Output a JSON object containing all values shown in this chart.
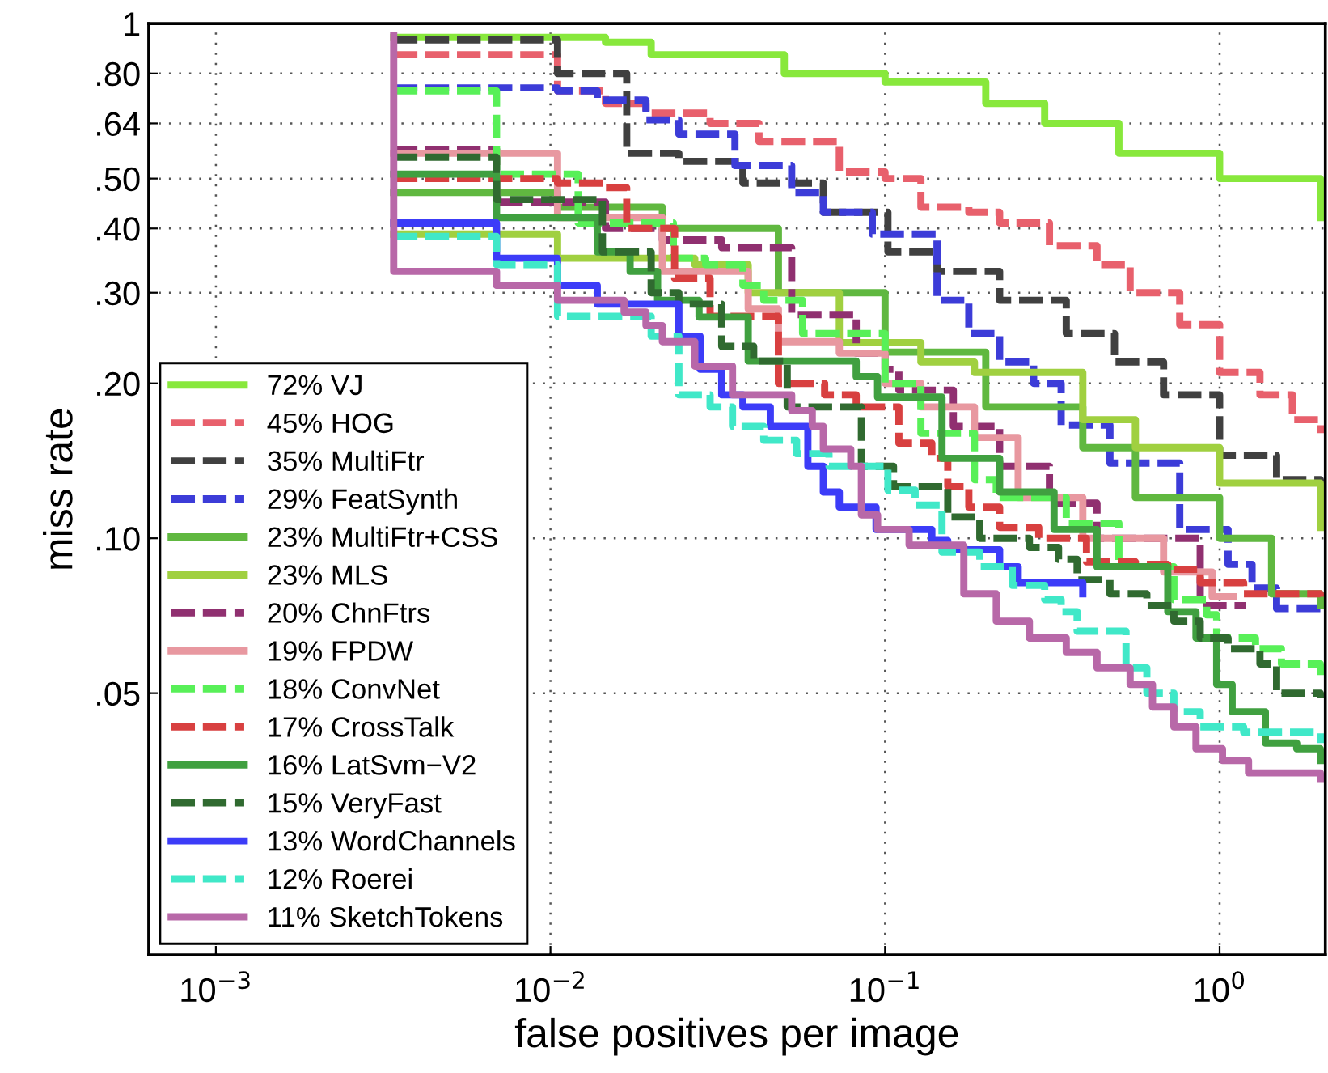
{
  "chart_data": {
    "type": "step",
    "xlabel": "false positives per image",
    "ylabel": "miss rate",
    "log": "xy",
    "grid": true,
    "legend": "bottom left",
    "xlim": [
      0.00063,
      2.07
    ],
    "ylim": [
      0.0155,
      1
    ],
    "xticks": [
      {
        "value": 0.001,
        "label": "10$^{−3}$"
      },
      {
        "value": 0.01,
        "label": "10$^{−2}$"
      },
      {
        "value": 0.1,
        "label": "10$^{−1}$"
      },
      {
        "value": 1,
        "label": "10$^{0}$"
      }
    ],
    "yticks": [
      {
        "value": 0.05,
        "label": ".05"
      },
      {
        "value": 0.1,
        "label": ".10"
      },
      {
        "value": 0.2,
        "label": ".20"
      },
      {
        "value": 0.3,
        "label": ".30"
      },
      {
        "value": 0.4,
        "label": ".40"
      },
      {
        "value": 0.5,
        "label": ".50"
      },
      {
        "value": 0.64,
        "label": ".64"
      },
      {
        "value": 0.8,
        "label": ".80"
      },
      1
    ],
    "series": [
      {
        "name": "72% VJ",
        "color": "#88e83c",
        "line_style": "solid",
        "x": [
          0.0034,
          0.0146,
          0.02,
          0.05,
          0.1,
          0.2,
          0.3,
          0.5,
          1,
          2
        ],
        "values": [
          0.94,
          0.92,
          0.87,
          0.8,
          0.77,
          0.7,
          0.64,
          0.56,
          0.5,
          0.42
        ]
      },
      {
        "name": "45% HOG",
        "color": "#e8606c",
        "line_style": "dashed",
        "x": [
          0.0034,
          0.0105,
          0.0146,
          0.0193,
          0.03,
          0.042,
          0.073,
          0.1,
          0.128,
          0.178,
          0.22,
          0.31,
          0.43,
          0.54,
          0.76,
          1,
          1.32,
          1.65,
          2
        ],
        "values": [
          0.87,
          0.74,
          0.7,
          0.67,
          0.64,
          0.59,
          0.515,
          0.5,
          0.44,
          0.43,
          0.41,
          0.37,
          0.34,
          0.3,
          0.26,
          0.21,
          0.19,
          0.17,
          0.16
        ]
      },
      {
        "name": "35% MultiFtr",
        "color": "#404040",
        "line_style": "dashed",
        "x": [
          0.0034,
          0.0105,
          0.0169,
          0.0242,
          0.0376,
          0.0654,
          0.102,
          0.143,
          0.22,
          0.348,
          0.485,
          0.68,
          1,
          1.48,
          2
        ],
        "values": [
          0.93,
          0.8,
          0.56,
          0.54,
          0.49,
          0.43,
          0.36,
          0.33,
          0.29,
          0.25,
          0.22,
          0.19,
          0.145,
          0.13,
          0.12
        ]
      },
      {
        "name": "29% FeatSynth",
        "color": "#3c3cd8",
        "line_style": "dashed",
        "x": [
          0.0034,
          0.0105,
          0.0138,
          0.0193,
          0.0242,
          0.0356,
          0.0526,
          0.0654,
          0.0916,
          0.143,
          0.178,
          0.22,
          0.278,
          0.336,
          0.47,
          0.76,
          1.06,
          1.25,
          1.48,
          2
        ],
        "values": [
          0.75,
          0.74,
          0.71,
          0.65,
          0.61,
          0.53,
          0.47,
          0.43,
          0.39,
          0.29,
          0.25,
          0.22,
          0.2,
          0.166,
          0.14,
          0.104,
          0.089,
          0.08,
          0.073,
          0.073
        ]
      },
      {
        "name": "23% MultiFtr+CSS",
        "color": "#60b840",
        "line_style": "solid",
        "x": [
          0.0034,
          0.0105,
          0.0216,
          0.048,
          0.1,
          0.2,
          0.39,
          0.56,
          1,
          1.43,
          2
        ],
        "values": [
          0.47,
          0.44,
          0.4,
          0.3,
          0.23,
          0.18,
          0.15,
          0.12,
          0.1,
          0.078,
          0.074
        ]
      },
      {
        "name": "23% MLS",
        "color": "#a0d040",
        "line_style": "solid",
        "x": [
          0.0034,
          0.0105,
          0.027,
          0.039,
          0.073,
          0.128,
          0.185,
          0.39,
          0.56,
          1,
          2
        ],
        "values": [
          0.39,
          0.35,
          0.34,
          0.3,
          0.24,
          0.22,
          0.21,
          0.17,
          0.15,
          0.128,
          0.105
        ]
      },
      {
        "name": "20% ChnFtrs",
        "color": "#903070",
        "line_style": "dashed",
        "x": [
          0.0034,
          0.0069,
          0.0146,
          0.0216,
          0.0325,
          0.0526,
          0.082,
          0.1,
          0.11,
          0.16,
          0.22,
          0.31,
          0.43,
          0.875,
          1.2
        ],
        "values": [
          0.57,
          0.45,
          0.4,
          0.38,
          0.367,
          0.272,
          0.229,
          0.213,
          0.194,
          0.165,
          0.138,
          0.117,
          0.1,
          0.074,
          0.074
        ]
      },
      {
        "name": "19% FPDW",
        "color": "#e898a0",
        "line_style": "solid",
        "x": [
          0.0034,
          0.0105,
          0.0216,
          0.039,
          0.048,
          0.073,
          0.1,
          0.128,
          0.185,
          0.25,
          0.39,
          0.68,
          0.95,
          1.1
        ],
        "values": [
          0.56,
          0.42,
          0.33,
          0.279,
          0.241,
          0.229,
          0.2,
          0.18,
          0.157,
          0.12,
          0.1,
          0.086,
          0.077,
          0.077
        ]
      },
      {
        "name": "18% ConvNet",
        "color": "#58f058",
        "line_style": "dashed",
        "x": [
          0.0034,
          0.0069,
          0.0121,
          0.0233,
          0.0291,
          0.0376,
          0.0434,
          0.0567,
          0.1,
          0.128,
          0.185,
          0.215,
          0.348,
          0.5,
          0.73,
          0.915,
          0.98,
          1.28,
          1.53,
          2
        ],
        "values": [
          0.74,
          0.51,
          0.41,
          0.35,
          0.34,
          0.31,
          0.29,
          0.25,
          0.2,
          0.16,
          0.13,
          0.12,
          0.107,
          0.088,
          0.076,
          0.071,
          0.064,
          0.061,
          0.057,
          0.053
        ]
      },
      {
        "name": "17% CrossTalk",
        "color": "#d84040",
        "line_style": "dashed",
        "x": [
          0.0034,
          0.0105,
          0.0146,
          0.0169,
          0.0235,
          0.03,
          0.048,
          0.066,
          0.082,
          0.11,
          0.138,
          0.154,
          0.178,
          0.22,
          0.288,
          0.4,
          0.56,
          0.7,
          0.875,
          1.18,
          2
        ],
        "values": [
          0.5,
          0.49,
          0.48,
          0.4,
          0.32,
          0.27,
          0.2,
          0.19,
          0.18,
          0.153,
          0.143,
          0.126,
          0.115,
          0.105,
          0.1,
          0.09,
          0.089,
          0.087,
          0.082,
          0.078,
          0.077
        ]
      },
      {
        "name": "16% LatSvm−V2",
        "color": "#40a040",
        "line_style": "solid",
        "x": [
          0.0034,
          0.0069,
          0.0138,
          0.0173,
          0.0209,
          0.0278,
          0.039,
          0.082,
          0.095,
          0.148,
          0.22,
          0.32,
          0.43,
          0.7,
          0.85,
          0.98,
          1.09,
          1.37,
          1.7,
          2
        ],
        "values": [
          0.51,
          0.42,
          0.36,
          0.33,
          0.29,
          0.269,
          0.221,
          0.206,
          0.188,
          0.143,
          0.123,
          0.104,
          0.088,
          0.072,
          0.064,
          0.052,
          0.046,
          0.04,
          0.039,
          0.037
        ]
      },
      {
        "name": "15% VeryFast",
        "color": "#306a30",
        "line_style": "dashed",
        "x": [
          0.0034,
          0.0069,
          0.0143,
          0.02,
          0.0242,
          0.0325,
          0.0405,
          0.051,
          0.085,
          0.106,
          0.154,
          0.192,
          0.27,
          0.33,
          0.375,
          0.47,
          0.606,
          0.73,
          0.875,
          1.06,
          1.32,
          1.48,
          2
        ],
        "values": [
          0.55,
          0.455,
          0.36,
          0.3,
          0.285,
          0.236,
          0.221,
          0.18,
          0.138,
          0.126,
          0.11,
          0.1,
          0.096,
          0.091,
          0.083,
          0.078,
          0.074,
          0.069,
          0.064,
          0.061,
          0.057,
          0.05,
          0.049
        ]
      },
      {
        "name": "13% WordChannels",
        "color": "#3c3cf8",
        "line_style": "solid",
        "x": [
          0.0034,
          0.0069,
          0.0105,
          0.0138,
          0.0242,
          0.028,
          0.0325,
          0.0376,
          0.0454,
          0.0588,
          0.0654,
          0.073,
          0.094,
          0.138,
          0.154,
          0.22,
          0.25,
          0.39
        ],
        "values": [
          0.41,
          0.35,
          0.31,
          0.285,
          0.247,
          0.213,
          0.19,
          0.18,
          0.165,
          0.138,
          0.123,
          0.115,
          0.104,
          0.099,
          0.095,
          0.088,
          0.082,
          0.078
        ]
      },
      {
        "name": "12% Roerei",
        "color": "#40e8c8",
        "line_style": "dashed",
        "x": [
          0.0034,
          0.0069,
          0.0105,
          0.02,
          0.0242,
          0.03,
          0.035,
          0.0434,
          0.0544,
          0.068,
          0.102,
          0.123,
          0.148,
          0.192,
          0.24,
          0.3,
          0.336,
          0.375,
          0.525,
          0.606,
          0.73,
          0.875,
          1.18,
          1.65,
          2
        ],
        "values": [
          0.386,
          0.34,
          0.27,
          0.247,
          0.19,
          0.18,
          0.165,
          0.155,
          0.146,
          0.138,
          0.124,
          0.116,
          0.094,
          0.088,
          0.081,
          0.076,
          0.072,
          0.066,
          0.056,
          0.05,
          0.046,
          0.043,
          0.042,
          0.042,
          0.04
        ]
      },
      {
        "name": "11% SketchTokens",
        "color": "#b868a8",
        "line_style": "solid",
        "x": [
          0.0034,
          0.0034,
          0.0069,
          0.0105,
          0.0166,
          0.0193,
          0.0216,
          0.027,
          0.035,
          0.0526,
          0.0606,
          0.0654,
          0.079,
          0.085,
          0.095,
          0.118,
          0.172,
          0.215,
          0.27,
          0.348,
          0.43,
          0.54,
          0.63,
          0.73,
          0.85,
          1.02,
          1.22,
          2
        ],
        "values": [
          0.95,
          0.33,
          0.31,
          0.29,
          0.275,
          0.259,
          0.241,
          0.216,
          0.19,
          0.177,
          0.165,
          0.149,
          0.138,
          0.111,
          0.104,
          0.097,
          0.078,
          0.069,
          0.064,
          0.06,
          0.056,
          0.052,
          0.047,
          0.043,
          0.039,
          0.037,
          0.035,
          0.034
        ]
      }
    ]
  }
}
